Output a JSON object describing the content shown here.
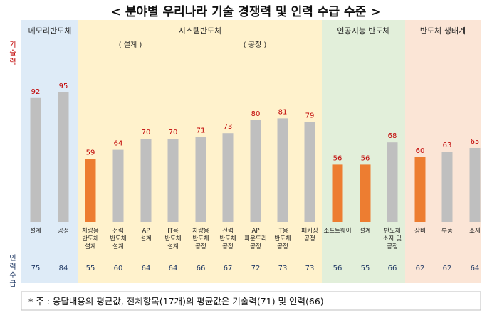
{
  "chart_data": {
    "type": "bar",
    "title": "< 분야별 우리나라 기술 경쟁력 및 인력 수급 수준 >",
    "tech_axis_label": "기술력",
    "labor_axis_label": "인력수급",
    "groups": [
      {
        "name": "메모리반도체",
        "color": "#deebf7",
        "subgroups": [],
        "start": 0,
        "count": 2
      },
      {
        "name": "시스템반도체",
        "color": "#fff2cc",
        "subgroups": [
          "( 설계 )",
          "( 공정 )"
        ],
        "start": 2,
        "count": 8
      },
      {
        "name": "인공지능 반도체",
        "color": "#e2efda",
        "subgroups": [],
        "start": 10,
        "count": 3
      },
      {
        "name": "반도체 생태계",
        "color": "#fbe5d6",
        "subgroups": [],
        "start": 13,
        "count": 3
      }
    ],
    "categories": [
      [
        "설계"
      ],
      [
        "공정"
      ],
      [
        "차량용",
        "반도체",
        "설계"
      ],
      [
        "전력",
        "반도체",
        "설계"
      ],
      [
        "AP",
        "설계"
      ],
      [
        "IT용",
        "반도체",
        "설계"
      ],
      [
        "차량용",
        "반도체",
        "공정"
      ],
      [
        "전력",
        "반도체",
        "공정"
      ],
      [
        "AP",
        "파운드리",
        "공정"
      ],
      [
        "IT용",
        "반도체",
        "공정"
      ],
      [
        "패키징",
        "공정"
      ],
      [
        "소프트웨어"
      ],
      [
        "설계"
      ],
      [
        "반도체",
        "소자 및",
        "공정"
      ],
      [
        "장비"
      ],
      [
        "부품"
      ],
      [
        "소재"
      ]
    ],
    "tech_values": [
      92,
      95,
      59,
      64,
      70,
      70,
      71,
      73,
      80,
      81,
      79,
      56,
      56,
      68,
      60,
      63,
      65
    ],
    "labor_values": [
      75,
      84,
      55,
      60,
      64,
      64,
      66,
      67,
      72,
      73,
      73,
      56,
      55,
      66,
      62,
      62,
      64
    ],
    "highlight_color": "#ed7d31",
    "bar_color": "#bfbfbf",
    "highlight_threshold": 60,
    "footnote": "* 주 : 응답내용의 평균값, 전체항목(17개)의 평균값은 기술력(71) 및 인력(66)"
  }
}
